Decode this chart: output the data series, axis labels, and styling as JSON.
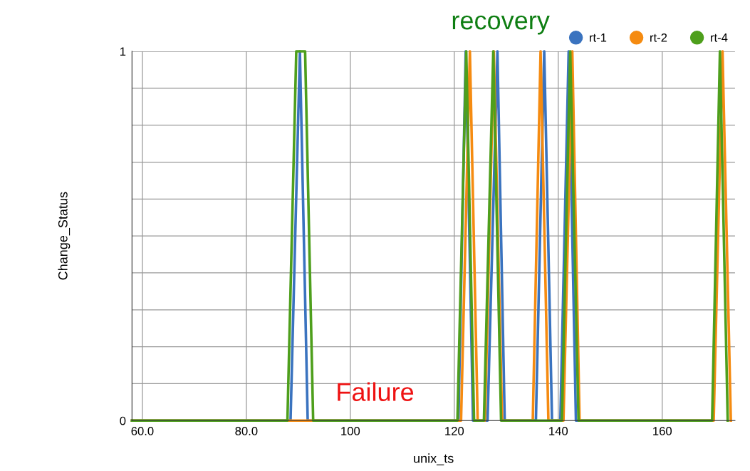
{
  "chart_data": {
    "type": "line",
    "xlabel": "unix_ts",
    "ylabel": "Change_Status",
    "annotations": [
      "recovery",
      "Failure"
    ],
    "xlim": [
      58,
      174
    ],
    "ylim": [
      0,
      1
    ],
    "xticks": [
      {
        "value": 60,
        "label": "60.0"
      },
      {
        "value": 80,
        "label": "80.0"
      },
      100,
      120,
      140,
      160
    ],
    "yticks": [
      0,
      {
        "value": 0.1,
        "label": null
      },
      {
        "value": 0.2,
        "label": null
      },
      {
        "value": 0.3,
        "label": null
      },
      {
        "value": 0.4,
        "label": null
      },
      {
        "value": 0.5,
        "label": null
      },
      {
        "value": 0.6,
        "label": null
      },
      {
        "value": 0.7,
        "label": null
      },
      {
        "value": 0.8,
        "label": null
      },
      {
        "value": 0.9,
        "label": null
      },
      1
    ],
    "grid": true,
    "legend": "top right",
    "marker": "none",
    "line_style": "solid",
    "series": [
      {
        "name": "rt-1",
        "color": "#3a73bf",
        "x": [
          58,
          88.5,
          90.3,
          91.8,
          120.8,
          122.2,
          123.6,
          126.4,
          128.3,
          129.7,
          135.7,
          137.3,
          138.8,
          140.4,
          142.0,
          143.4,
          169.7
        ],
        "values": [
          0,
          0,
          1,
          0,
          0,
          1,
          0,
          0,
          1,
          0,
          0,
          1,
          0,
          0,
          1,
          0,
          0
        ]
      },
      {
        "name": "rt-2",
        "color": "#f58b11",
        "x": [
          58,
          121.3,
          123.0,
          124.5,
          125.9,
          127.6,
          129.2,
          135.1,
          136.6,
          138.1,
          141.0,
          142.7,
          144.1,
          169.9,
          171.6,
          173.2
        ],
        "values": [
          0,
          0,
          1,
          0,
          0,
          1,
          0,
          0,
          1,
          0,
          0,
          1,
          0,
          0,
          1,
          0
        ]
      },
      {
        "name": "rt-4",
        "color": "#4e9f1c",
        "x": [
          58,
          87.9,
          89.6,
          91.3,
          92.85,
          120.6,
          122.3,
          123.8,
          125.7,
          127.5,
          129.0,
          140.7,
          142.3,
          143.9,
          169.6,
          171.1,
          172.6
        ],
        "values": [
          0,
          0,
          1,
          1,
          0,
          0,
          1,
          0,
          0,
          1,
          0,
          0,
          1,
          0,
          0,
          1,
          0
        ]
      }
    ]
  }
}
